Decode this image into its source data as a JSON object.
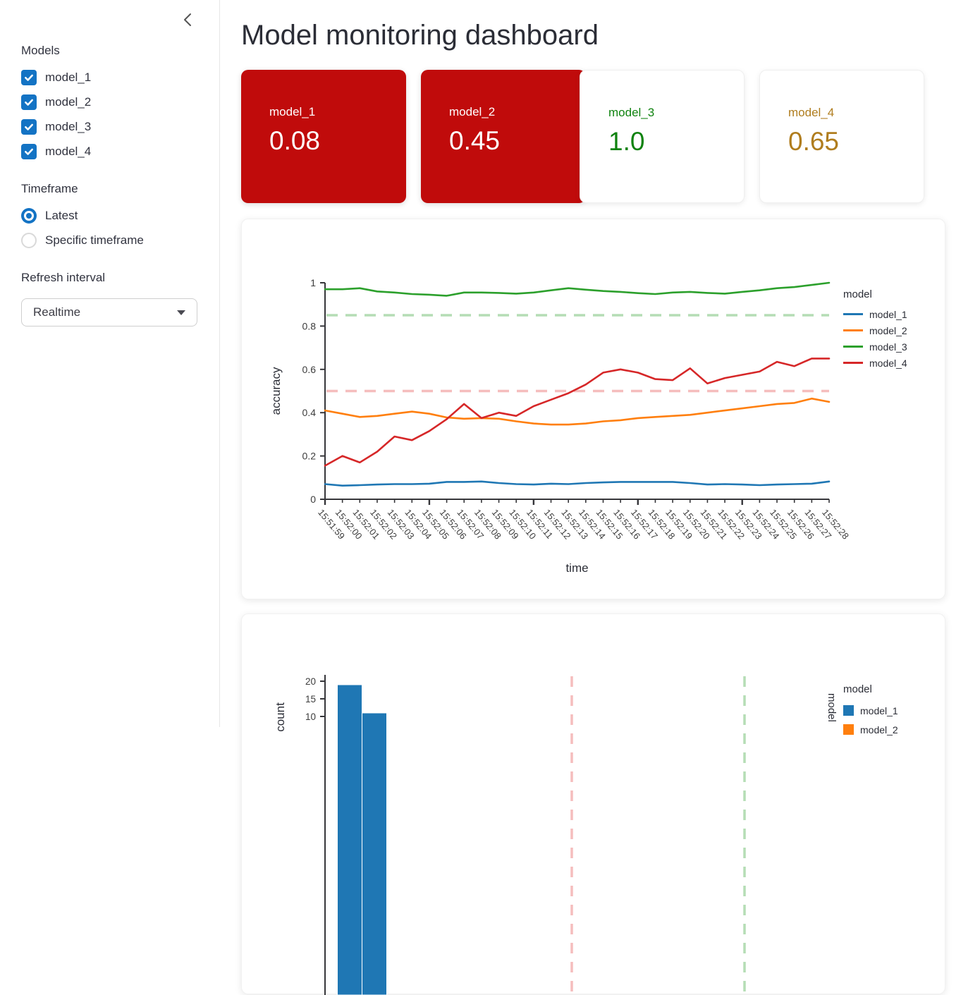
{
  "sidebar": {
    "models_label": "Models",
    "model_checkboxes": [
      {
        "label": "model_1",
        "checked": true
      },
      {
        "label": "model_2",
        "checked": true
      },
      {
        "label": "model_3",
        "checked": true
      },
      {
        "label": "model_4",
        "checked": true
      }
    ],
    "timeframe_label": "Timeframe",
    "timeframe_options": [
      {
        "label": "Latest",
        "selected": true
      },
      {
        "label": "Specific timeframe",
        "selected": false
      }
    ],
    "refresh_label": "Refresh interval",
    "refresh_value": "Realtime"
  },
  "header": {
    "title": "Model monitoring dashboard"
  },
  "metric_cards": [
    {
      "label": "model_1",
      "value": "0.08",
      "bg": "#c00b0b",
      "text_color": "#ffffff"
    },
    {
      "label": "model_2",
      "value": "0.45",
      "bg": "#c00b0b",
      "text_color": "#ffffff"
    },
    {
      "label": "model_3",
      "value": "1.0",
      "bg": "#ffffff",
      "text_color": "#108310"
    },
    {
      "label": "model_4",
      "value": "0.65",
      "bg": "#ffffff",
      "text_color": "#b07d1e"
    }
  ],
  "chart_data": [
    {
      "type": "line",
      "xlabel": "time",
      "ylabel": "accuracy",
      "legend_title": "model",
      "legend_position": "right",
      "grid": false,
      "ylim": [
        0,
        1
      ],
      "yticks": [
        {
          "v": 0,
          "label": "0"
        },
        {
          "v": 0.2,
          "label": "0.2"
        },
        {
          "v": 0.4,
          "label": "0.4"
        },
        {
          "v": 0.6,
          "label": "0.6"
        },
        {
          "v": 0.8,
          "label": "0.8"
        },
        {
          "v": 1,
          "label": "1"
        }
      ],
      "x": [
        "15:51:59",
        "15:52:00",
        "15:52:01",
        "15:52:02",
        "15:52:03",
        "15:52:04",
        "15:52:05",
        "15:52:06",
        "15:52:07",
        "15:52:08",
        "15:52:09",
        "15:52:10",
        "15:52:11",
        "15:52:12",
        "15:52:13",
        "15:52:14",
        "15:52:15",
        "15:52:16",
        "15:52:17",
        "15:52:18",
        "15:52:19",
        "15:52:20",
        "15:52:21",
        "15:52:22",
        "15:52:23",
        "15:52:24",
        "15:52:25",
        "15:52:26",
        "15:52:27",
        "15:52:28"
      ],
      "series": [
        {
          "name": "model_1",
          "color": "#1f77b4",
          "values": [
            0.07,
            0.063,
            0.065,
            0.068,
            0.07,
            0.07,
            0.072,
            0.08,
            0.08,
            0.082,
            0.075,
            0.07,
            0.068,
            0.072,
            0.07,
            0.075,
            0.078,
            0.08,
            0.08,
            0.08,
            0.08,
            0.075,
            0.068,
            0.07,
            0.068,
            0.065,
            0.068,
            0.07,
            0.072,
            0.082
          ]
        },
        {
          "name": "model_2",
          "color": "#ff7f0e",
          "values": [
            0.41,
            0.395,
            0.38,
            0.385,
            0.395,
            0.405,
            0.395,
            0.378,
            0.372,
            0.375,
            0.372,
            0.36,
            0.35,
            0.345,
            0.345,
            0.35,
            0.36,
            0.365,
            0.375,
            0.38,
            0.385,
            0.39,
            0.4,
            0.41,
            0.42,
            0.43,
            0.44,
            0.445,
            0.465,
            0.45
          ]
        },
        {
          "name": "model_3",
          "color": "#2ca02c",
          "values": [
            0.97,
            0.97,
            0.975,
            0.96,
            0.955,
            0.948,
            0.945,
            0.94,
            0.955,
            0.955,
            0.953,
            0.95,
            0.955,
            0.965,
            0.975,
            0.968,
            0.962,
            0.958,
            0.952,
            0.948,
            0.955,
            0.958,
            0.953,
            0.95,
            0.958,
            0.965,
            0.975,
            0.98,
            0.99,
            1.0
          ]
        },
        {
          "name": "model_4",
          "color": "#d62728",
          "values": [
            0.155,
            0.2,
            0.17,
            0.22,
            0.29,
            0.273,
            0.315,
            0.37,
            0.44,
            0.375,
            0.4,
            0.385,
            0.43,
            0.46,
            0.49,
            0.53,
            0.585,
            0.6,
            0.585,
            0.555,
            0.55,
            0.605,
            0.535,
            0.56,
            0.575,
            0.59,
            0.635,
            0.615,
            0.65,
            0.65
          ]
        }
      ],
      "thresholds": [
        {
          "value": 0.85,
          "color": "#b5ddb5",
          "style": "dashed"
        },
        {
          "value": 0.5,
          "color": "#f5bdbd",
          "style": "dashed"
        }
      ]
    },
    {
      "type": "histogram",
      "ylabel": "count",
      "legend_title": "model",
      "facet_label": "model",
      "xlim": [
        0,
        1
      ],
      "yticks": [
        {
          "v": 20,
          "label": "20"
        },
        {
          "v": 15,
          "label": "15"
        },
        {
          "v": 10,
          "label": "10"
        }
      ],
      "bars": [
        {
          "x_start": 0.025,
          "x_end": 0.075,
          "count": 19,
          "color": "#1f77b4"
        },
        {
          "x_start": 0.075,
          "x_end": 0.125,
          "count": 11,
          "color": "#1f77b4"
        }
      ],
      "legend_items": [
        {
          "name": "model_1",
          "color": "#1f77b4"
        },
        {
          "name": "model_2",
          "color": "#ff7f0e"
        }
      ],
      "thresholds": [
        {
          "value": 0.5,
          "color": "#f5bdbd",
          "style": "dashed"
        },
        {
          "value": 0.85,
          "color": "#b5ddb5",
          "style": "dashed"
        }
      ]
    }
  ]
}
